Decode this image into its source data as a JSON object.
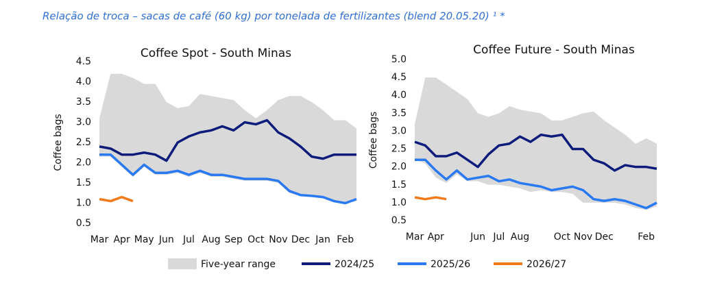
{
  "header": {
    "title": "Relação de troca – sacas de café (60 kg) por tonelada de fertilizantes (blend 20.05.20) ¹ *"
  },
  "chart_data": [
    {
      "type": "line",
      "title": "Coffee Spot - South Minas",
      "y_label": "Coffee bags",
      "x": [
        0,
        1,
        2,
        3,
        4,
        5,
        6,
        7,
        8,
        9,
        10,
        11,
        12,
        13,
        14,
        15,
        16,
        17,
        18,
        19,
        20,
        21,
        22,
        23
      ],
      "xlim": [
        0,
        23
      ],
      "xticks": [
        {
          "value": 0,
          "label": "Mar"
        },
        {
          "value": 2,
          "label": "Apr"
        },
        {
          "value": 4,
          "label": "May"
        },
        {
          "value": 6,
          "label": "Jun"
        },
        {
          "value": 8,
          "label": "Jul"
        },
        {
          "value": 10,
          "label": "Aug"
        },
        {
          "value": 12,
          "label": "Sep"
        },
        {
          "value": 14,
          "label": "Oct"
        },
        {
          "value": 16,
          "label": "Nov"
        },
        {
          "value": 18,
          "label": "Dec"
        },
        {
          "value": 20,
          "label": "Jan"
        },
        {
          "value": 22,
          "label": "Feb"
        }
      ],
      "ylim": [
        0.5,
        4.5
      ],
      "yticks": [
        0.5,
        {
          "value": 1,
          "label": "1.0"
        },
        1.5,
        {
          "value": 2,
          "label": "2.0"
        },
        2.5,
        {
          "value": 3,
          "label": "3.0"
        },
        3.5,
        {
          "value": 4,
          "label": "4.0"
        },
        4.5
      ],
      "series": [
        {
          "name": "Five-year range",
          "type": "range",
          "color": "#d9d9d9",
          "high": [
            3.1,
            4.2,
            4.2,
            4.1,
            3.95,
            3.95,
            3.5,
            3.35,
            3.4,
            3.7,
            3.65,
            3.6,
            3.55,
            3.3,
            3.1,
            3.3,
            3.55,
            3.65,
            3.65,
            3.5,
            3.3,
            3.05,
            3.05,
            2.85
          ],
          "low": [
            2.15,
            2.15,
            1.9,
            1.65,
            1.9,
            1.7,
            1.7,
            1.75,
            1.65,
            1.75,
            1.65,
            1.65,
            1.6,
            1.55,
            1.55,
            1.55,
            1.5,
            1.25,
            1.18,
            1.15,
            1.12,
            1.02,
            0.98,
            1.05
          ]
        },
        {
          "name": "2024/25",
          "color": "#0d1b7a",
          "values": [
            2.4,
            2.35,
            2.2,
            2.2,
            2.25,
            2.2,
            2.05,
            2.5,
            2.65,
            2.75,
            2.8,
            2.9,
            2.8,
            3.0,
            2.95,
            3.05,
            2.75,
            2.6,
            2.4,
            2.15,
            2.1,
            2.2,
            2.2,
            2.2
          ]
        },
        {
          "name": "2025/26",
          "color": "#2979f2",
          "values": [
            2.2,
            2.2,
            1.95,
            1.7,
            1.95,
            1.75,
            1.75,
            1.8,
            1.7,
            1.8,
            1.7,
            1.7,
            1.65,
            1.6,
            1.6,
            1.6,
            1.55,
            1.3,
            1.2,
            1.18,
            1.15,
            1.05,
            1.0,
            1.1
          ]
        },
        {
          "name": "2026/27",
          "color": "#f07a1a",
          "values": [
            1.1,
            1.05,
            1.15,
            1.05,
            null,
            null,
            null,
            null,
            null,
            null,
            null,
            null,
            null,
            null,
            null,
            null,
            null,
            null,
            null,
            null,
            null,
            null,
            null,
            null
          ]
        }
      ]
    },
    {
      "type": "line",
      "title": "Coffee Future  - South Minas",
      "y_label": "Coffee bags",
      "x": [
        0,
        1,
        2,
        3,
        4,
        5,
        6,
        7,
        8,
        9,
        10,
        11,
        12,
        13,
        14,
        15,
        16,
        17,
        18,
        19,
        20,
        21,
        22,
        23
      ],
      "xlim": [
        0,
        23
      ],
      "xticks": [
        {
          "value": 0,
          "label": "Mar"
        },
        {
          "value": 2,
          "label": "Apr"
        },
        {
          "value": 6,
          "label": "Jun"
        },
        {
          "value": 8,
          "label": "Jul"
        },
        {
          "value": 10,
          "label": "Aug"
        },
        {
          "value": 14,
          "label": "Oct"
        },
        {
          "value": 16,
          "label": "Nov"
        },
        {
          "value": 18,
          "label": "Dec"
        },
        {
          "value": 22,
          "label": "Feb"
        }
      ],
      "ylim": [
        0.5,
        5
      ],
      "yticks": [
        0.5,
        {
          "value": 1,
          "label": "1.0"
        },
        1.5,
        {
          "value": 2,
          "label": "2.0"
        },
        2.5,
        {
          "value": 3,
          "label": "3.0"
        },
        3.5,
        {
          "value": 4,
          "label": "4.0"
        },
        4.5,
        {
          "value": 5,
          "label": "5.0"
        }
      ],
      "series": [
        {
          "name": "Five-year range",
          "type": "range",
          "color": "#d9d9d9",
          "high": [
            3.2,
            4.5,
            4.5,
            4.3,
            4.1,
            3.9,
            3.5,
            3.4,
            3.5,
            3.7,
            3.6,
            3.55,
            3.5,
            3.3,
            3.3,
            3.4,
            3.5,
            3.55,
            3.3,
            3.1,
            2.9,
            2.65,
            2.8,
            2.65
          ],
          "low": [
            2.2,
            2.1,
            1.7,
            1.55,
            1.8,
            1.6,
            1.6,
            1.5,
            1.5,
            1.45,
            1.4,
            1.3,
            1.35,
            1.3,
            1.3,
            1.25,
            1.0,
            1.0,
            1.0,
            1.0,
            0.95,
            0.85,
            0.8,
            0.9
          ]
        },
        {
          "name": "2024/25",
          "color": "#0d1b7a",
          "values": [
            2.7,
            2.6,
            2.3,
            2.3,
            2.4,
            2.2,
            2.0,
            2.35,
            2.6,
            2.65,
            2.85,
            2.7,
            2.9,
            2.85,
            2.9,
            2.5,
            2.5,
            2.2,
            2.1,
            1.9,
            2.05,
            2.0,
            2.0,
            1.95
          ]
        },
        {
          "name": "2025/26",
          "color": "#2979f2",
          "values": [
            2.2,
            2.2,
            1.9,
            1.65,
            1.9,
            1.65,
            1.7,
            1.75,
            1.6,
            1.65,
            1.55,
            1.5,
            1.45,
            1.35,
            1.4,
            1.45,
            1.35,
            1.1,
            1.05,
            1.1,
            1.05,
            0.95,
            0.85,
            1.0
          ]
        },
        {
          "name": "2026/27",
          "color": "#f07a1a",
          "values": [
            1.15,
            1.1,
            1.15,
            1.1,
            null,
            null,
            null,
            null,
            null,
            null,
            null,
            null,
            null,
            null,
            null,
            null,
            null,
            null,
            null,
            null,
            null,
            null,
            null,
            null
          ]
        }
      ]
    }
  ]
}
